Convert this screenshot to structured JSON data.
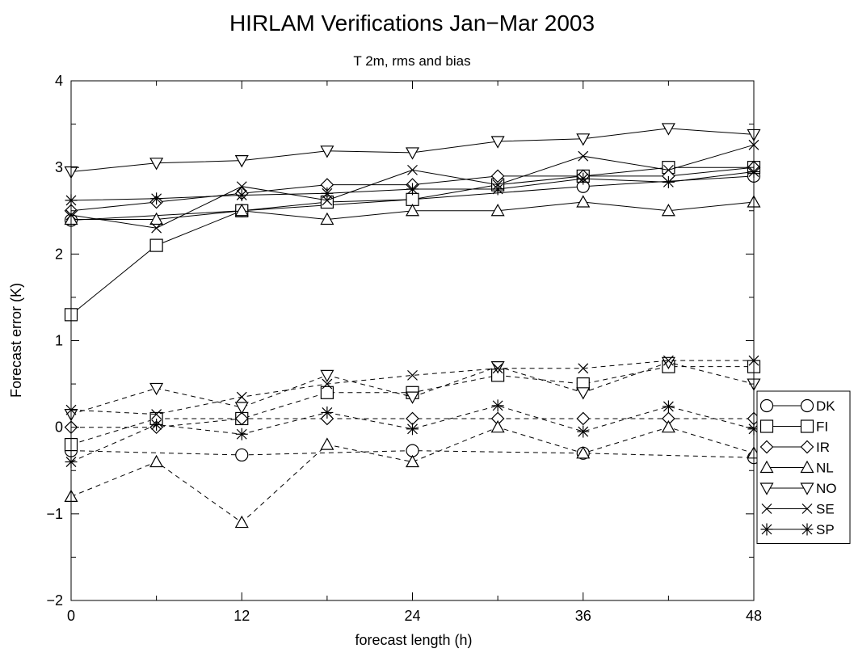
{
  "chart_data": {
    "type": "line",
    "title": "HIRLAM Verifications Jan−Mar 2003",
    "subtitle": "T 2m, rms and bias",
    "xlabel": "forecast length (h)",
    "ylabel": "Forecast error (K)",
    "xlim": [
      0,
      48
    ],
    "ylim": [
      -2,
      4
    ],
    "xticks": [
      0,
      12,
      24,
      36,
      48
    ],
    "yticks": [
      -2,
      -1,
      0,
      1,
      2,
      3,
      4
    ],
    "ytick_labels": [
      "−2",
      "−1",
      "0",
      "1",
      "2",
      "3",
      "4"
    ],
    "grid": false,
    "legend_position": "right",
    "line_color": "#000000",
    "series": [
      {
        "name": "DK",
        "marker": "circle",
        "metric": "rms",
        "style": "solid",
        "x": [
          0,
          12,
          24,
          36,
          48
        ],
        "values": [
          2.39,
          2.5,
          2.63,
          2.78,
          2.9
        ]
      },
      {
        "name": "FI",
        "marker": "square",
        "metric": "rms",
        "style": "solid",
        "x": [
          0,
          6,
          12,
          18,
          24,
          30,
          36,
          42,
          48
        ],
        "values": [
          1.3,
          2.1,
          2.5,
          2.6,
          2.63,
          2.8,
          2.9,
          3.0,
          3.0
        ]
      },
      {
        "name": "IR",
        "marker": "diamond",
        "metric": "rms",
        "style": "solid",
        "x": [
          0,
          6,
          12,
          18,
          24,
          30,
          36,
          42,
          48
        ],
        "values": [
          2.5,
          2.6,
          2.7,
          2.8,
          2.8,
          2.9,
          2.9,
          2.9,
          3.0
        ]
      },
      {
        "name": "NL",
        "marker": "triangle-up",
        "metric": "rms",
        "style": "solid",
        "x": [
          0,
          6,
          12,
          18,
          24,
          30,
          36,
          42,
          48
        ],
        "values": [
          2.4,
          2.4,
          2.5,
          2.4,
          2.5,
          2.5,
          2.6,
          2.5,
          2.6
        ]
      },
      {
        "name": "NO",
        "marker": "triangle-down",
        "metric": "rms",
        "style": "solid",
        "x": [
          0,
          6,
          12,
          18,
          24,
          30,
          36,
          42,
          48
        ],
        "values": [
          2.95,
          3.05,
          3.08,
          3.19,
          3.17,
          3.3,
          3.33,
          3.45,
          3.38
        ]
      },
      {
        "name": "SE",
        "marker": "x",
        "metric": "rms",
        "style": "solid",
        "x": [
          0,
          6,
          12,
          18,
          24,
          30,
          36,
          42,
          48
        ],
        "values": [
          2.45,
          2.3,
          2.78,
          2.62,
          2.97,
          2.8,
          3.13,
          2.97,
          3.26
        ]
      },
      {
        "name": "SP",
        "marker": "asterisk",
        "metric": "rms",
        "style": "solid",
        "x": [
          0,
          6,
          12,
          18,
          24,
          30,
          36,
          42,
          48
        ],
        "values": [
          2.62,
          2.64,
          2.68,
          2.7,
          2.75,
          2.75,
          2.87,
          2.83,
          2.95
        ]
      },
      {
        "name": "DK",
        "marker": "circle",
        "metric": "bias",
        "style": "dashed",
        "x": [
          0,
          12,
          24,
          36,
          48
        ],
        "values": [
          -0.27,
          -0.32,
          -0.27,
          -0.3,
          -0.35
        ]
      },
      {
        "name": "FI",
        "marker": "square",
        "metric": "bias",
        "style": "dashed",
        "x": [
          0,
          6,
          12,
          18,
          24,
          30,
          36,
          42,
          48
        ],
        "values": [
          -0.2,
          0.1,
          0.1,
          0.4,
          0.4,
          0.6,
          0.5,
          0.7,
          0.7
        ]
      },
      {
        "name": "IR",
        "marker": "diamond",
        "metric": "bias",
        "style": "dashed",
        "x": [
          0,
          6,
          12,
          18,
          24,
          30,
          36,
          42,
          48
        ],
        "values": [
          0.0,
          0.0,
          0.1,
          0.1,
          0.1,
          0.1,
          0.1,
          0.1,
          0.1
        ]
      },
      {
        "name": "NL",
        "marker": "triangle-up",
        "metric": "bias",
        "style": "dashed",
        "x": [
          0,
          6,
          12,
          18,
          24,
          30,
          36,
          42,
          48
        ],
        "values": [
          -0.8,
          -0.4,
          -1.1,
          -0.2,
          -0.4,
          0.0,
          -0.3,
          0.0,
          -0.3
        ]
      },
      {
        "name": "NO",
        "marker": "triangle-down",
        "metric": "bias",
        "style": "dashed",
        "x": [
          0,
          6,
          12,
          18,
          24,
          30,
          36,
          42,
          48
        ],
        "values": [
          0.15,
          0.45,
          0.23,
          0.6,
          0.35,
          0.7,
          0.4,
          0.75,
          0.5
        ]
      },
      {
        "name": "SE",
        "marker": "x",
        "metric": "bias",
        "style": "dashed",
        "x": [
          0,
          6,
          12,
          18,
          24,
          30,
          36,
          42,
          48
        ],
        "values": [
          0.2,
          0.15,
          0.35,
          0.5,
          0.6,
          0.68,
          0.68,
          0.77,
          0.77
        ]
      },
      {
        "name": "SP",
        "marker": "asterisk",
        "metric": "bias",
        "style": "dashed",
        "x": [
          0,
          6,
          12,
          18,
          24,
          30,
          36,
          42,
          48
        ],
        "values": [
          -0.4,
          0.03,
          -0.08,
          0.17,
          -0.02,
          0.25,
          -0.05,
          0.24,
          -0.02
        ]
      }
    ],
    "legend": [
      {
        "label": "DK",
        "marker": "circle"
      },
      {
        "label": "FI",
        "marker": "square"
      },
      {
        "label": "IR",
        "marker": "diamond"
      },
      {
        "label": "NL",
        "marker": "triangle-up"
      },
      {
        "label": "NO",
        "marker": "triangle-down"
      },
      {
        "label": "SE",
        "marker": "x"
      },
      {
        "label": "SP",
        "marker": "asterisk"
      }
    ]
  }
}
